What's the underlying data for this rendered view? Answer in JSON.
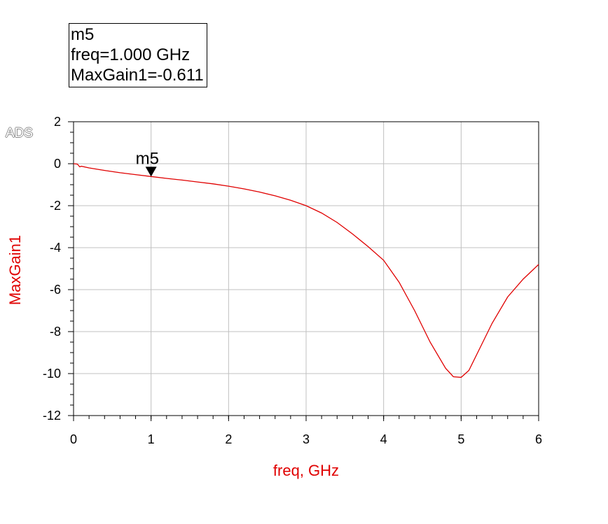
{
  "logo": "ADS",
  "marker_readout": {
    "name": "m5",
    "freq": "freq=1.000 GHz",
    "value": "MaxGain1=-0.611"
  },
  "colors": {
    "trace": "#e00000",
    "axis_label": "#e00000",
    "grid": "#c0c0c0",
    "text": "#000000"
  },
  "chart_data": {
    "type": "line",
    "xlabel": "freq, GHz",
    "ylabel": "MaxGain1",
    "xlim": [
      0,
      6
    ],
    "ylim": [
      -12,
      2
    ],
    "xticks": [
      "0",
      "1",
      "2",
      "3",
      "4",
      "5",
      "6"
    ],
    "yticks": [
      "2",
      "0",
      "-2",
      "-4",
      "-6",
      "-8",
      "-10",
      "-12"
    ],
    "grid": true,
    "series": [
      {
        "x": [
          0,
          0.05,
          0.08,
          0.1,
          0.2,
          0.4,
          0.6,
          0.8,
          1.0,
          1.2,
          1.4,
          1.6,
          1.8,
          2.0,
          2.2,
          2.4,
          2.6,
          2.8,
          3.0,
          3.2,
          3.4,
          3.6,
          3.8,
          4.0,
          4.2,
          4.4,
          4.6,
          4.8,
          4.9,
          5.0,
          5.1,
          5.2,
          5.4,
          5.6,
          5.8,
          6.0
        ],
        "values": [
          0,
          -0.02,
          -0.15,
          -0.12,
          -0.2,
          -0.32,
          -0.43,
          -0.52,
          -0.611,
          -0.7,
          -0.78,
          -0.87,
          -0.96,
          -1.07,
          -1.2,
          -1.35,
          -1.53,
          -1.74,
          -2.0,
          -2.35,
          -2.8,
          -3.35,
          -3.95,
          -4.6,
          -5.65,
          -7.0,
          -8.5,
          -9.75,
          -10.15,
          -10.18,
          -9.85,
          -9.1,
          -7.6,
          -6.35,
          -5.5,
          -4.8
        ]
      }
    ],
    "marker": {
      "label": "m5",
      "x": 1.0,
      "y": -0.611
    }
  }
}
